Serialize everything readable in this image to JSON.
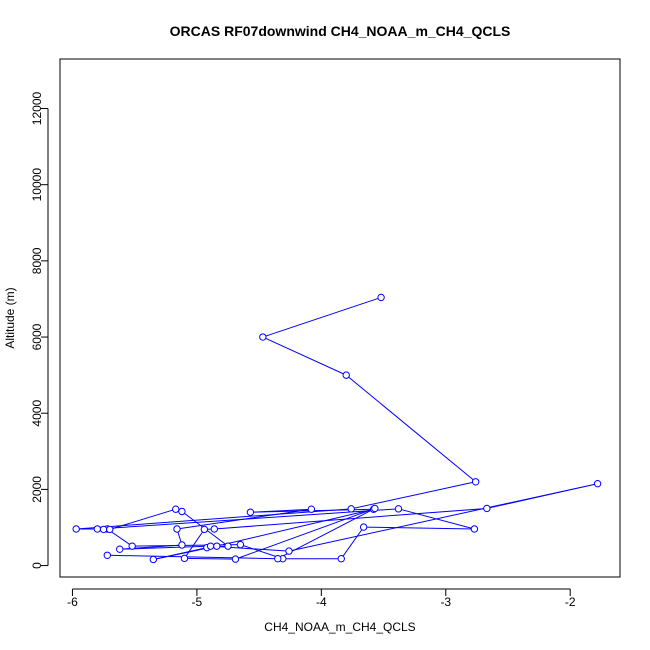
{
  "chart_data": {
    "type": "line",
    "title": "ORCAS RF07downwind CH4_NOAA_m_CH4_QCLS",
    "xlabel": "CH4_NOAA_m_CH4_QCLS",
    "ylabel": "Altitude (m)",
    "xlim": [
      -6.1,
      -1.6
    ],
    "ylim": [
      -300,
      13300
    ],
    "xticks": [
      -6,
      -5,
      -4,
      -3,
      -2
    ],
    "xtick_labels": [
      "-6",
      "-5",
      "-4",
      "-3",
      "-2"
    ],
    "yticks": [
      0,
      2000,
      4000,
      6000,
      8000,
      10000,
      12000
    ],
    "ytick_labels": [
      "0",
      "2000",
      "4000",
      "6000",
      "8000",
      "10000",
      "12000"
    ],
    "grid": false,
    "legend": "none",
    "series_color": "#0000ff",
    "marker": "open-circle",
    "series": [
      {
        "x": [
          -3.52,
          -4.47,
          -3.8,
          -2.76,
          -3.76,
          -5.97,
          -5.72,
          -5.52,
          -4.65,
          -4.31,
          -3.84,
          -3.66,
          -2.77,
          -3.38,
          -5.8,
          -5.75,
          -5.7,
          -5.17,
          -5.12,
          -4.75,
          -4.92,
          -5.35,
          -4.84,
          -3.58,
          -4.57,
          -4.08,
          -5.16,
          -5.12,
          -5.62,
          -4.89,
          -4.26,
          -1.78,
          -2.67,
          -4.86,
          -4.94,
          -5.1,
          -4.69,
          -3.57,
          -4.35,
          -5.72
        ],
        "y": [
          7040,
          6000,
          5000,
          2200,
          1490,
          960,
          960,
          510,
          550,
          180,
          180,
          1010,
          960,
          1490,
          960,
          950,
          950,
          1480,
          1420,
          510,
          470,
          160,
          510,
          1480,
          1400,
          1480,
          960,
          540,
          430,
          510,
          380,
          2150,
          1500,
          960,
          950,
          190,
          170,
          1500,
          180,
          270
        ]
      }
    ]
  }
}
